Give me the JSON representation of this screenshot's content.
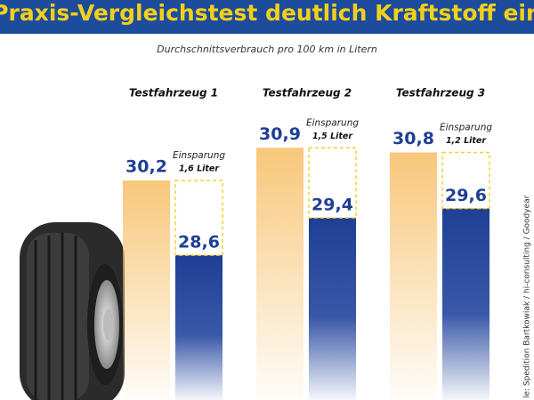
{
  "chart_data": {
    "type": "bar",
    "title": "Praxis-Vergleichstest deutlich Kraftstoff ein",
    "subtitle": "Durchschnittsverbrauch pro 100 km in Litern",
    "categories": [
      "Testfahrzeug 1",
      "Testfahrzeug 2",
      "Testfahrzeug 3"
    ],
    "series": [
      {
        "color": "#f8c77a",
        "values": [
          30.2,
          30.9,
          30.8
        ],
        "value_labels": [
          "30,2",
          "30,9",
          "30,8"
        ]
      },
      {
        "color": "#1e3f94",
        "values": [
          28.6,
          29.4,
          29.6
        ],
        "value_labels": [
          "28,6",
          "29,4",
          "29,6"
        ]
      }
    ],
    "savings": {
      "label": "Einsparung",
      "color": "#f2d230",
      "values": [
        1.6,
        1.5,
        1.2
      ],
      "value_labels": [
        "1,6 Liter",
        "1,5 Liter",
        "1,2 Liter"
      ]
    },
    "ylim": [
      25.5,
      31.5
    ],
    "source": "le: Spedition Bartkowiak / hi-consulting / Goodyear"
  }
}
